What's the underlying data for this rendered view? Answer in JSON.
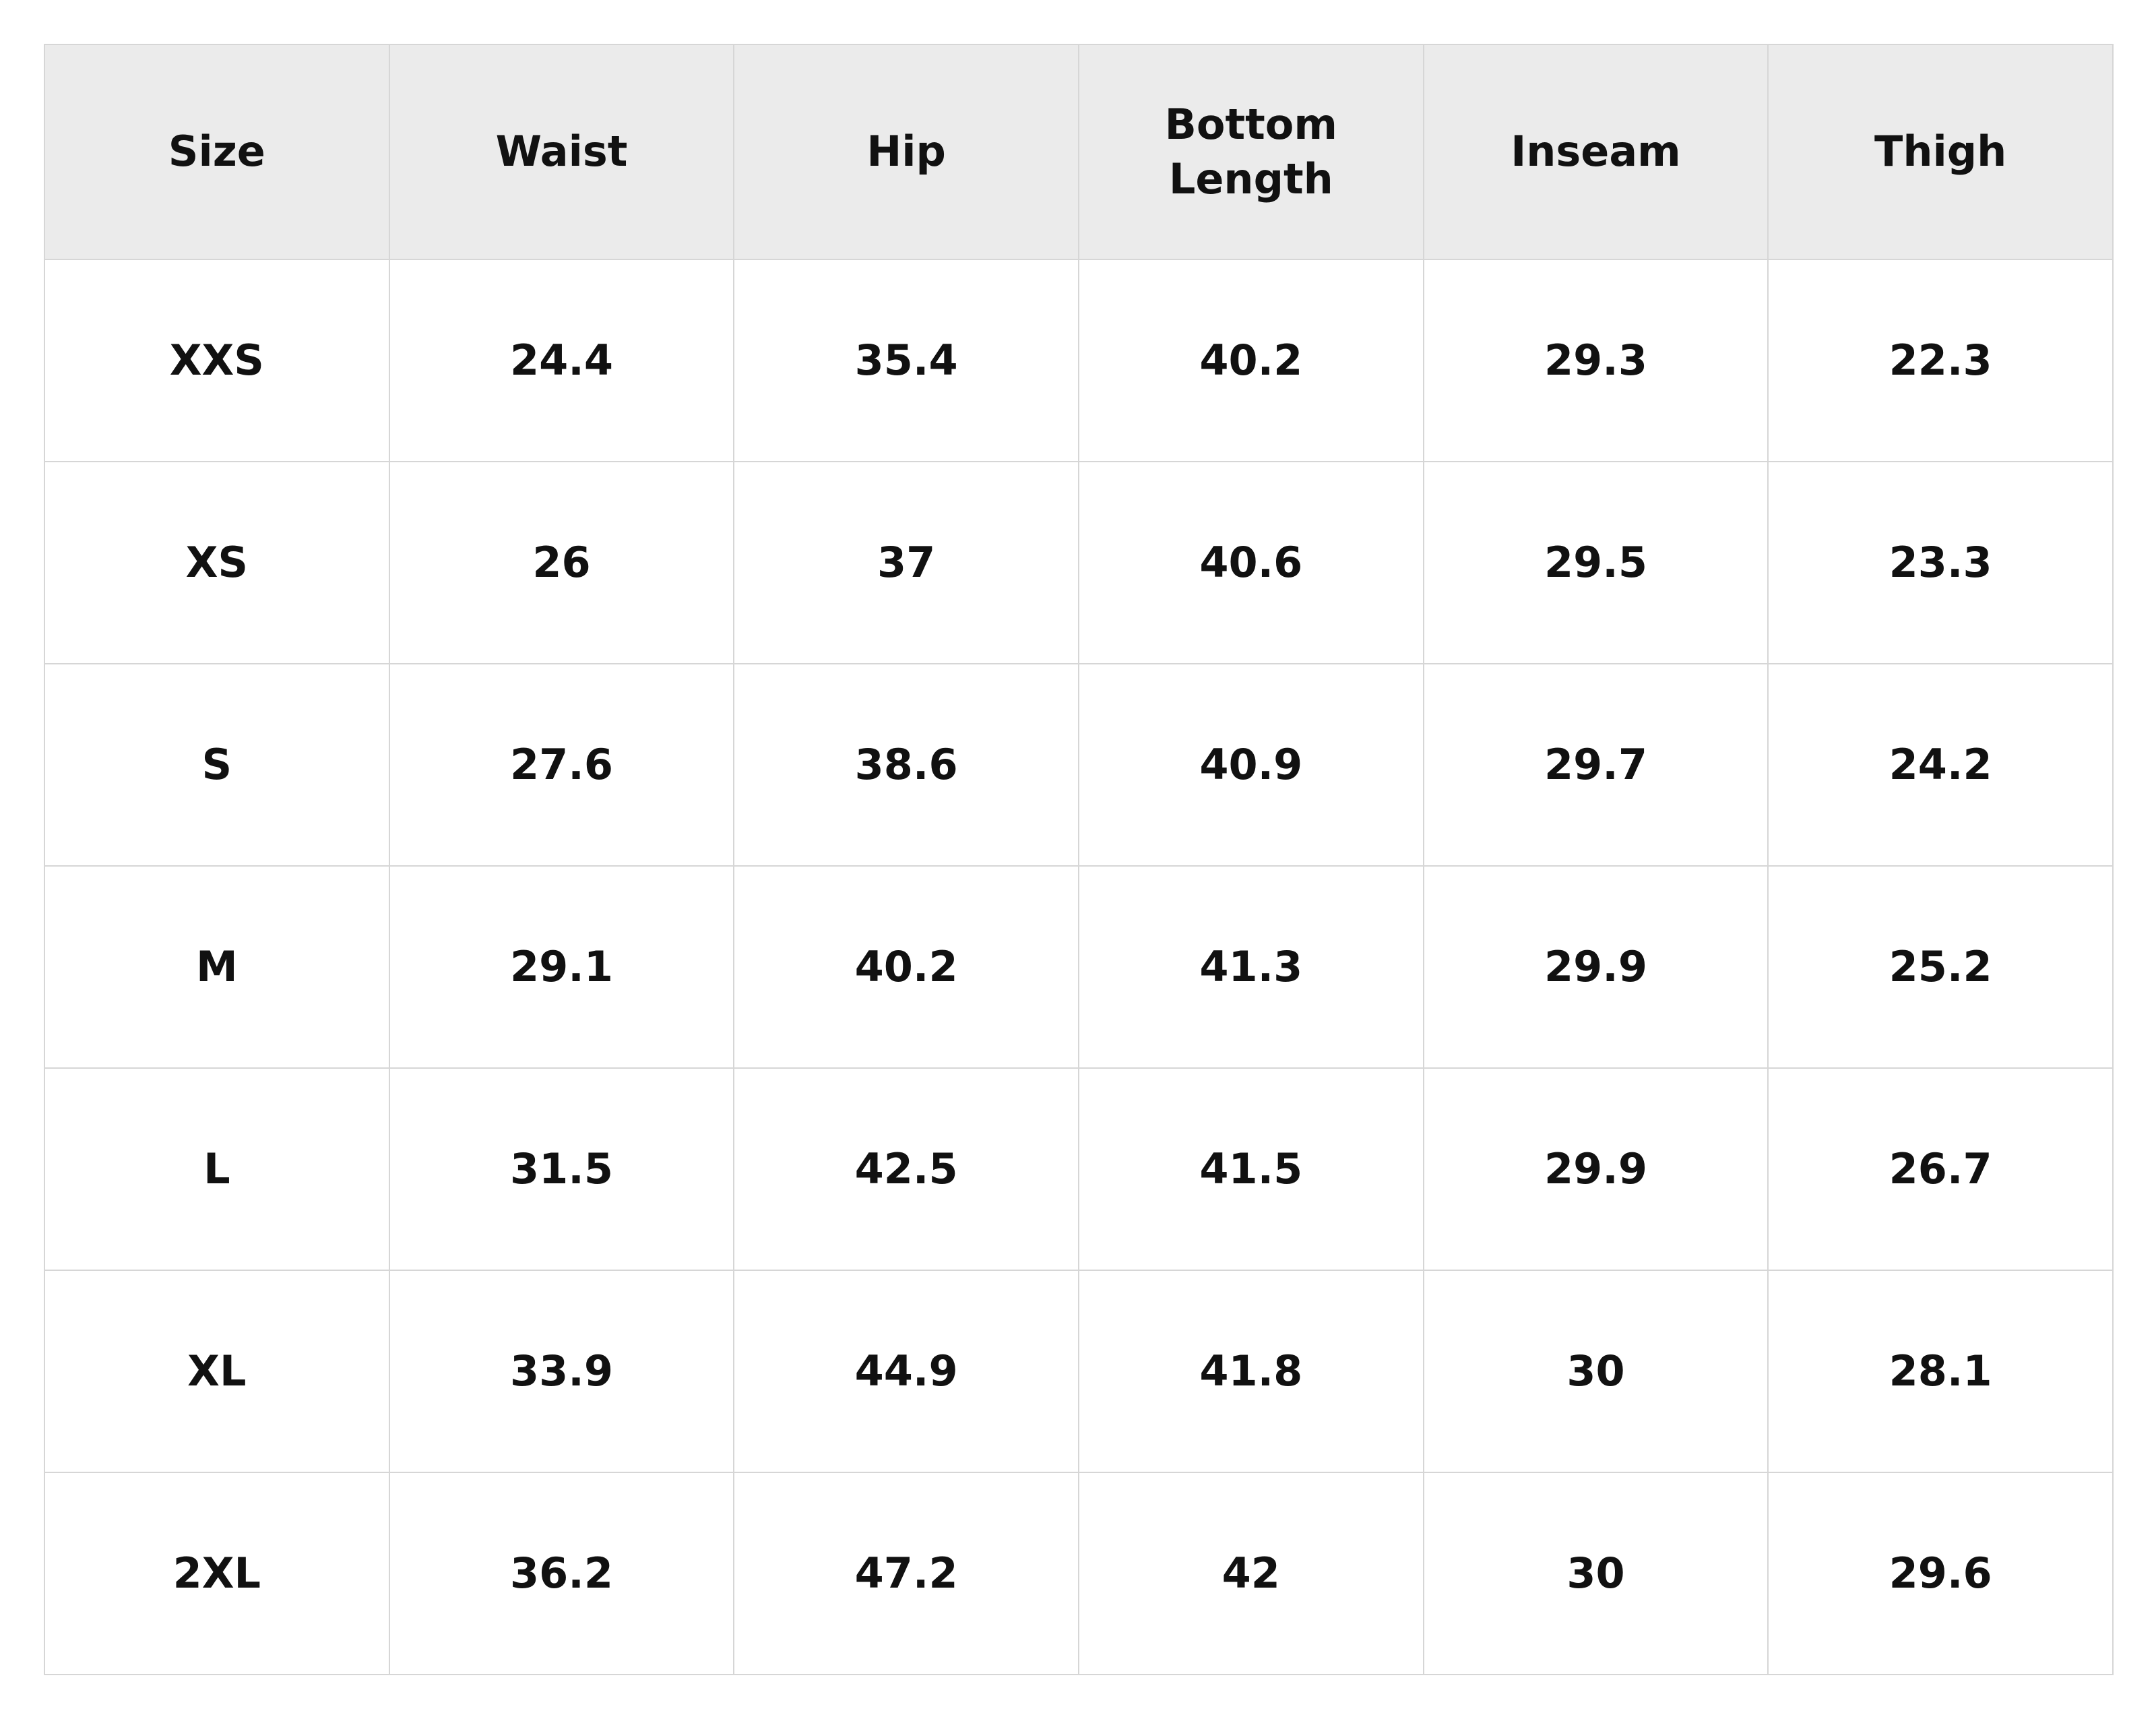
{
  "table": {
    "header": [
      "Size",
      "Waist",
      "Hip",
      "Bottom Length",
      "Inseam",
      "Thigh"
    ],
    "rows": [
      [
        "XXS",
        "24.4",
        "35.4",
        "40.2",
        "29.3",
        "22.3"
      ],
      [
        "XS",
        "26",
        "37",
        "40.6",
        "29.5",
        "23.3"
      ],
      [
        "S",
        "27.6",
        "38.6",
        "40.9",
        "29.7",
        "24.2"
      ],
      [
        "M",
        "29.1",
        "40.2",
        "41.3",
        "29.9",
        "25.2"
      ],
      [
        "L",
        "31.5",
        "42.5",
        "41.5",
        "29.9",
        "26.7"
      ],
      [
        "XL",
        "33.9",
        "44.9",
        "41.8",
        "30",
        "28.1"
      ],
      [
        "2XL",
        "36.2",
        "47.2",
        "42",
        "30",
        "29.6"
      ]
    ]
  }
}
